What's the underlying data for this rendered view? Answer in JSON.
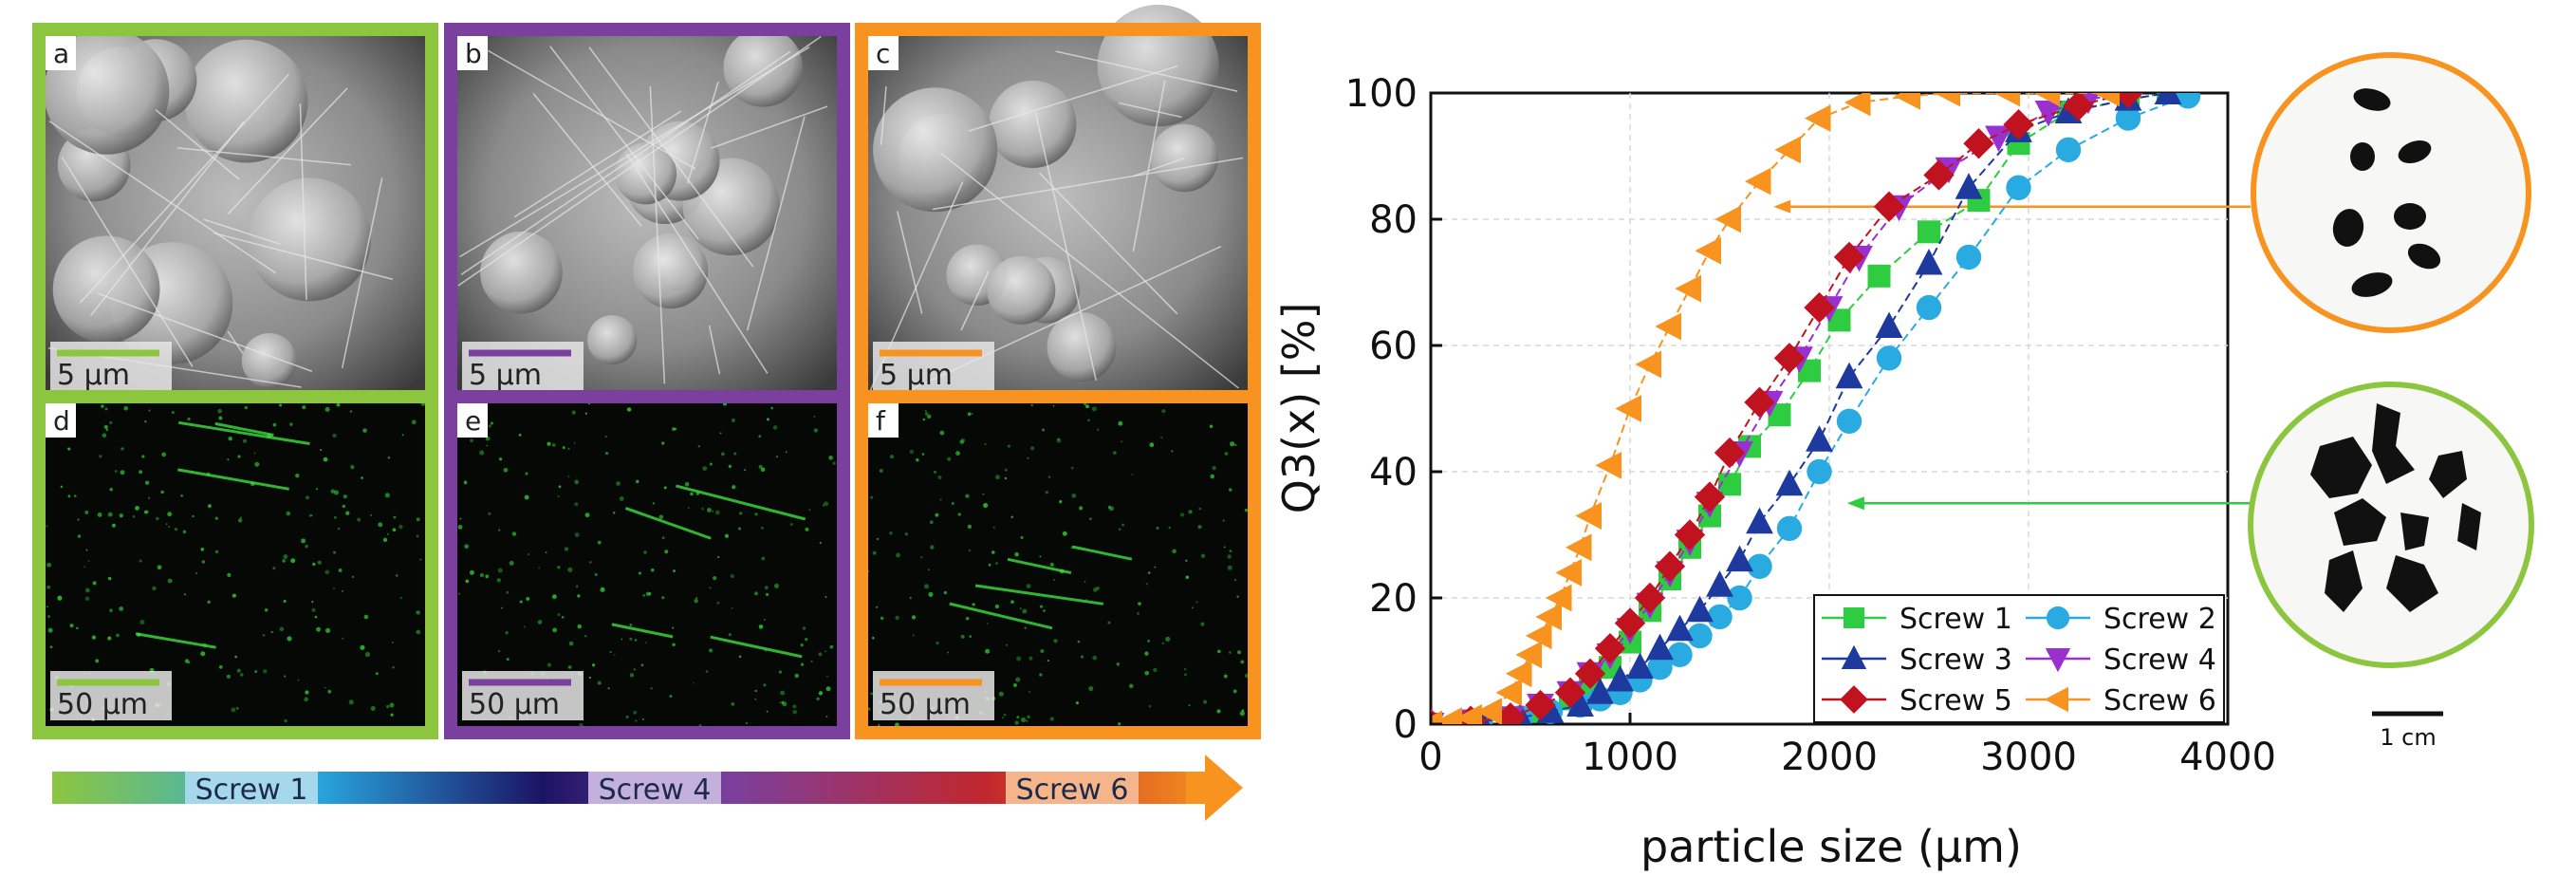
{
  "panels": [
    {
      "letter": "a",
      "scale": "5 µm",
      "frame": "#8cc63f",
      "bar": "#8cc63f",
      "kind": "sem"
    },
    {
      "letter": "b",
      "scale": "5 µm",
      "frame": "#7b3f9e",
      "bar": "#7b3f9e",
      "kind": "sem"
    },
    {
      "letter": "c",
      "scale": "5 µm",
      "frame": "#f7931e",
      "bar": "#f7931e",
      "kind": "sem"
    },
    {
      "letter": "d",
      "scale": "50 µm",
      "frame": "#8cc63f",
      "bar": "#8cc63f",
      "kind": "map"
    },
    {
      "letter": "e",
      "scale": "50 µm",
      "frame": "#7b3f9e",
      "bar": "#7b3f9e",
      "kind": "map"
    },
    {
      "letter": "f",
      "scale": "50 µm",
      "frame": "#f7931e",
      "bar": "#f7931e",
      "kind": "map"
    }
  ],
  "gradient_arrow": {
    "labels": [
      "Screw 1",
      "Screw 4",
      "Screw 6"
    ],
    "stops": [
      "#8cc63f",
      "#29abe2",
      "#1b1464",
      "#7b3f9e",
      "#c1272d",
      "#f7931e"
    ]
  },
  "photos": {
    "top_ring": "#f7931e",
    "bottom_ring": "#8cc63f",
    "scale_label": "1 cm"
  },
  "chart_data": {
    "type": "line",
    "xlabel": "particle size (µm)",
    "ylabel": "Q3(x) [%]",
    "xlim": [
      0,
      4000
    ],
    "ylim": [
      0,
      100
    ],
    "xticks": [
      0,
      1000,
      2000,
      3000,
      4000
    ],
    "yticks": [
      0,
      20,
      40,
      60,
      80,
      100
    ],
    "grid": true,
    "legend_position": "bottom-right",
    "series": [
      {
        "name": "Screw 1",
        "color": "#2ecc40",
        "marker": "square",
        "x": [
          0,
          200,
          400,
          550,
          700,
          800,
          900,
          1000,
          1100,
          1200,
          1300,
          1400,
          1500,
          1600,
          1750,
          1900,
          2050,
          2250,
          2500,
          2750,
          2950,
          3200,
          3500,
          3700
        ],
        "y": [
          0,
          0.5,
          1,
          2,
          4,
          6,
          9,
          13,
          18,
          23,
          28,
          33,
          38,
          44,
          49,
          56,
          64,
          71,
          78,
          83,
          92,
          97,
          99,
          100
        ]
      },
      {
        "name": "Screw 2",
        "color": "#29abe2",
        "marker": "circle",
        "x": [
          0,
          250,
          450,
          600,
          750,
          850,
          950,
          1050,
          1150,
          1250,
          1350,
          1450,
          1550,
          1650,
          1800,
          1950,
          2100,
          2300,
          2500,
          2700,
          2950,
          3200,
          3500,
          3800
        ],
        "y": [
          0,
          0.5,
          1,
          2,
          3,
          4,
          5,
          7,
          9,
          11,
          14,
          17,
          20,
          25,
          31,
          40,
          48,
          58,
          66,
          74,
          85,
          91,
          96,
          99.5
        ]
      },
      {
        "name": "Screw 3",
        "color": "#1f3a9e",
        "marker": "triangle-up",
        "x": [
          0,
          250,
          450,
          600,
          750,
          850,
          950,
          1050,
          1150,
          1250,
          1350,
          1450,
          1550,
          1650,
          1800,
          1950,
          2100,
          2300,
          2500,
          2700,
          2950,
          3200,
          3500,
          3700
        ],
        "y": [
          0,
          0.5,
          1,
          2,
          3,
          5,
          7,
          9,
          12,
          15,
          18,
          22,
          26,
          32,
          38,
          45,
          55,
          63,
          73,
          85,
          94,
          97,
          99,
          100
        ]
      },
      {
        "name": "Screw 4",
        "color": "#9b30d0",
        "marker": "triangle-down",
        "x": [
          0,
          200,
          400,
          550,
          700,
          800,
          900,
          1000,
          1100,
          1200,
          1300,
          1400,
          1550,
          1700,
          1850,
          2000,
          2150,
          2350,
          2600,
          2850,
          3100,
          3300,
          3500
        ],
        "y": [
          0,
          0.5,
          1,
          3,
          5,
          8,
          11,
          15,
          19,
          24,
          29,
          35,
          43,
          51,
          58,
          66,
          74,
          82,
          88,
          93,
          97,
          99,
          100
        ]
      },
      {
        "name": "Screw 5",
        "color": "#c1121f",
        "marker": "diamond",
        "x": [
          0,
          200,
          400,
          550,
          700,
          800,
          900,
          1000,
          1100,
          1200,
          1300,
          1400,
          1500,
          1650,
          1800,
          1950,
          2100,
          2300,
          2550,
          2750,
          2950,
          3250,
          3500
        ],
        "y": [
          0,
          0.5,
          1,
          3,
          5,
          8,
          12,
          16,
          20,
          25,
          30,
          36,
          43,
          51,
          58,
          66,
          74,
          82,
          87,
          92,
          95,
          98,
          100
        ]
      },
      {
        "name": "Screw 6",
        "color": "#f7931e",
        "marker": "triangle-left",
        "x": [
          0,
          100,
          200,
          300,
          400,
          450,
          500,
          550,
          600,
          650,
          700,
          750,
          800,
          900,
          1000,
          1100,
          1200,
          1300,
          1400,
          1500,
          1650,
          1800,
          1950,
          2150,
          2400,
          2600,
          2900,
          3100,
          3400
        ],
        "y": [
          0,
          0.5,
          1,
          2,
          5,
          8,
          11,
          14,
          17,
          20,
          24,
          28,
          33,
          41,
          50,
          57,
          63,
          69,
          75,
          80,
          86,
          91,
          96,
          98.5,
          99.5,
          100,
          100,
          100,
          100
        ]
      }
    ],
    "annotations": [
      {
        "target_series": "Screw 6",
        "at_y": 82,
        "from": "top_photo",
        "color": "#f7931e"
      },
      {
        "target_series": "Screw 1",
        "at_y": 35,
        "from": "bottom_photo",
        "color": "#2ecc40"
      }
    ]
  }
}
